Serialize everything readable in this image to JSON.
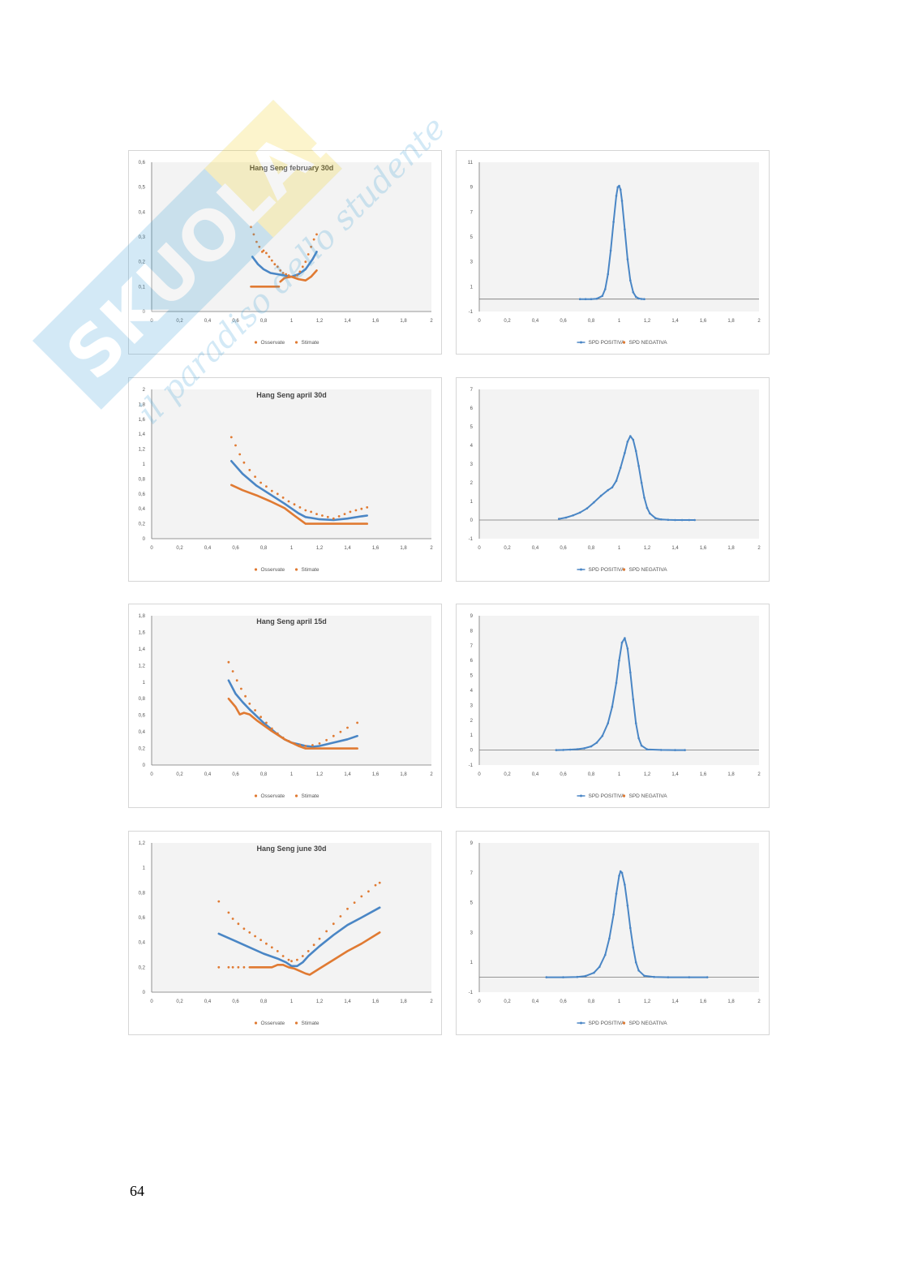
{
  "page": {
    "number": "64",
    "watermark": {
      "brand": "SKUOLA.net",
      "tagline": "il paradiso dello studente"
    }
  },
  "colors": {
    "blue": "#4a86c5",
    "orange": "#e07a32",
    "plot_bg": "#f3f3f3",
    "axis": "#777777"
  },
  "chart_data": [
    {
      "id": "iv-feb30",
      "type": "scatter",
      "title": "Hang Seng february 30d",
      "xlim": [
        0,
        2
      ],
      "ylim": [
        0,
        0.6
      ],
      "xticks": [
        "0",
        "0,2",
        "0,4",
        "0,6",
        "0,8",
        "1",
        "1,2",
        "1,4",
        "1,6",
        "1,8",
        "2"
      ],
      "yticks": [
        "0",
        "0,1",
        "0,2",
        "0,3",
        "0,4",
        "0,5",
        "0,6"
      ],
      "legend": [
        "Osservate",
        "Stimate"
      ],
      "series": [
        {
          "name": "Osservate",
          "color": "#4a86c5",
          "style": "line",
          "x": [
            0.72,
            0.76,
            0.8,
            0.85,
            0.9,
            0.95,
            1.0,
            1.05,
            1.1,
            1.15,
            1.18
          ],
          "y": [
            0.22,
            0.19,
            0.17,
            0.155,
            0.15,
            0.145,
            0.14,
            0.15,
            0.17,
            0.21,
            0.24
          ]
        },
        {
          "name": "Stimate",
          "color": "#e07a32",
          "style": "dots",
          "x": [
            0.71,
            0.73,
            0.75,
            0.77,
            0.79,
            0.8,
            0.82,
            0.84,
            0.86,
            0.88,
            0.9,
            0.92,
            0.94,
            0.96,
            0.98,
            1.0,
            1.02,
            1.04,
            1.06,
            1.08,
            1.1,
            1.12,
            1.14,
            1.16,
            1.18
          ],
          "y": [
            0.34,
            0.31,
            0.28,
            0.26,
            0.24,
            0.245,
            0.235,
            0.22,
            0.205,
            0.19,
            0.18,
            0.165,
            0.155,
            0.15,
            0.145,
            0.14,
            0.14,
            0.145,
            0.16,
            0.18,
            0.2,
            0.23,
            0.26,
            0.29,
            0.31
          ]
        },
        {
          "name": "Stimate",
          "color": "#e07a32",
          "style": "line",
          "x": [
            0.71,
            0.82,
            0.91
          ],
          "y": [
            0.1,
            0.1,
            0.1
          ]
        },
        {
          "name": "Stimate",
          "color": "#e07a32",
          "style": "line",
          "x": [
            0.92,
            0.95,
            1.0,
            1.05,
            1.1,
            1.14,
            1.18
          ],
          "y": [
            0.12,
            0.135,
            0.14,
            0.13,
            0.125,
            0.14,
            0.165
          ]
        }
      ]
    },
    {
      "id": "spd-feb30",
      "type": "line",
      "xlim": [
        0,
        2
      ],
      "ylim": [
        -1,
        11
      ],
      "xticks": [
        "0",
        "0,2",
        "0,4",
        "0,6",
        "0,8",
        "1",
        "1,2",
        "1,4",
        "1,6",
        "1,8",
        "2"
      ],
      "yticks": [
        "-1",
        "1",
        "3",
        "5",
        "7",
        "9",
        "11"
      ],
      "legend": [
        "SPD POSITIVA",
        "SPD NEGATIVA"
      ],
      "series": [
        {
          "name": "SPD POSITIVA",
          "color": "#4a86c5",
          "x": [
            0.72,
            0.76,
            0.8,
            0.84,
            0.88,
            0.9,
            0.92,
            0.94,
            0.96,
            0.98,
            0.99,
            1.0,
            1.01,
            1.02,
            1.04,
            1.06,
            1.08,
            1.1,
            1.12,
            1.14,
            1.16,
            1.18
          ],
          "y": [
            0,
            0,
            0,
            0.03,
            0.25,
            0.8,
            2.0,
            3.9,
            6.2,
            8.3,
            9.0,
            9.1,
            8.8,
            7.9,
            5.6,
            3.2,
            1.5,
            0.55,
            0.18,
            0.05,
            0.01,
            0
          ]
        }
      ]
    },
    {
      "id": "iv-apr30",
      "type": "scatter",
      "title": "Hang Seng april 30d",
      "xlim": [
        0,
        2
      ],
      "ylim": [
        0,
        2
      ],
      "xticks": [
        "0",
        "0,2",
        "0,4",
        "0,6",
        "0,8",
        "1",
        "1,2",
        "1,4",
        "1,6",
        "1,8",
        "2"
      ],
      "yticks": [
        "0",
        "0,2",
        "0,4",
        "0,6",
        "0,8",
        "1",
        "1,2",
        "1,4",
        "1,6",
        "1,8",
        "2"
      ],
      "legend": [
        "Osservate",
        "Stimate"
      ],
      "series": [
        {
          "name": "Osservate",
          "color": "#4a86c5",
          "style": "line",
          "x": [
            0.57,
            0.65,
            0.75,
            0.85,
            0.95,
            1.05,
            1.1,
            1.2,
            1.3,
            1.4,
            1.5,
            1.54
          ],
          "y": [
            1.04,
            0.87,
            0.71,
            0.59,
            0.47,
            0.34,
            0.29,
            0.26,
            0.25,
            0.27,
            0.3,
            0.31
          ]
        },
        {
          "name": "Stimate",
          "color": "#e07a32",
          "style": "dots",
          "x": [
            0.57,
            0.6,
            0.63,
            0.66,
            0.7,
            0.74,
            0.78,
            0.82,
            0.86,
            0.9,
            0.94,
            0.98,
            1.02,
            1.06,
            1.1,
            1.14,
            1.18,
            1.22,
            1.26,
            1.3,
            1.34,
            1.38,
            1.42,
            1.46,
            1.5,
            1.54
          ],
          "y": [
            1.36,
            1.25,
            1.13,
            1.02,
            0.92,
            0.83,
            0.75,
            0.7,
            0.64,
            0.6,
            0.55,
            0.5,
            0.46,
            0.42,
            0.38,
            0.36,
            0.33,
            0.31,
            0.29,
            0.27,
            0.3,
            0.33,
            0.36,
            0.38,
            0.4,
            0.42
          ]
        },
        {
          "name": "Stimate",
          "color": "#e07a32",
          "style": "line",
          "x": [
            0.57,
            0.65,
            0.75,
            0.85,
            0.95,
            1.02,
            1.1,
            1.54
          ],
          "y": [
            0.72,
            0.65,
            0.58,
            0.5,
            0.41,
            0.31,
            0.2,
            0.2
          ]
        }
      ]
    },
    {
      "id": "spd-apr30",
      "type": "line",
      "xlim": [
        0,
        2
      ],
      "ylim": [
        -1,
        7
      ],
      "xticks": [
        "0",
        "0,2",
        "0,4",
        "0,6",
        "0,8",
        "1",
        "1,2",
        "1,4",
        "1,6",
        "1,8",
        "2"
      ],
      "yticks": [
        "-1",
        "0",
        "1",
        "2",
        "3",
        "4",
        "5",
        "6",
        "7"
      ],
      "legend": [
        "SPD POSITIVA",
        "SPD NEGATIVA"
      ],
      "series": [
        {
          "name": "SPD POSITIVA",
          "color": "#4a86c5",
          "x": [
            0.57,
            0.62,
            0.67,
            0.72,
            0.77,
            0.82,
            0.87,
            0.92,
            0.95,
            0.98,
            1.01,
            1.04,
            1.06,
            1.08,
            1.1,
            1.12,
            1.14,
            1.16,
            1.18,
            1.2,
            1.22,
            1.26,
            1.3,
            1.35,
            1.4,
            1.45,
            1.5,
            1.54
          ],
          "y": [
            0.06,
            0.13,
            0.25,
            0.4,
            0.62,
            0.95,
            1.3,
            1.6,
            1.75,
            2.1,
            2.8,
            3.6,
            4.2,
            4.5,
            4.3,
            3.7,
            2.9,
            2.0,
            1.2,
            0.65,
            0.35,
            0.1,
            0.03,
            0.01,
            0,
            0,
            0,
            0
          ]
        }
      ]
    },
    {
      "id": "iv-apr15",
      "type": "scatter",
      "title": "Hang Seng april 15d",
      "xlim": [
        0,
        2
      ],
      "ylim": [
        0,
        1.8
      ],
      "xticks": [
        "0",
        "0,2",
        "0,4",
        "0,6",
        "0,8",
        "1",
        "1,2",
        "1,4",
        "1,6",
        "1,8",
        "2"
      ],
      "yticks": [
        "0",
        "0,2",
        "0,4",
        "0,6",
        "0,8",
        "1",
        "1,2",
        "1,4",
        "1,6",
        "1,8"
      ],
      "legend": [
        "Osservate",
        "Stimate"
      ],
      "series": [
        {
          "name": "Osservate",
          "color": "#4a86c5",
          "style": "line",
          "x": [
            0.55,
            0.6,
            0.65,
            0.7,
            0.75,
            0.8,
            0.85,
            0.9,
            0.95,
            1.0,
            1.05,
            1.1,
            1.15,
            1.2,
            1.3,
            1.4,
            1.47
          ],
          "y": [
            1.02,
            0.86,
            0.76,
            0.67,
            0.59,
            0.51,
            0.44,
            0.37,
            0.31,
            0.27,
            0.25,
            0.23,
            0.22,
            0.23,
            0.27,
            0.31,
            0.35
          ]
        },
        {
          "name": "Stimate",
          "color": "#e07a32",
          "style": "dots",
          "x": [
            0.55,
            0.58,
            0.61,
            0.64,
            0.67,
            0.7,
            0.74,
            0.78,
            0.82,
            0.86,
            0.9,
            0.94,
            0.98,
            1.02,
            1.06,
            1.1,
            1.15,
            1.2,
            1.25,
            1.3,
            1.35,
            1.4,
            1.47
          ],
          "y": [
            1.24,
            1.13,
            1.02,
            0.92,
            0.83,
            0.74,
            0.66,
            0.58,
            0.51,
            0.44,
            0.38,
            0.33,
            0.29,
            0.26,
            0.24,
            0.23,
            0.24,
            0.26,
            0.3,
            0.35,
            0.4,
            0.45,
            0.51
          ]
        },
        {
          "name": "Stimate",
          "color": "#e07a32",
          "style": "line",
          "x": [
            0.55,
            0.6,
            0.63,
            0.66,
            0.7,
            0.75,
            0.85,
            0.95,
            1.05,
            1.1,
            1.47
          ],
          "y": [
            0.8,
            0.7,
            0.61,
            0.63,
            0.61,
            0.54,
            0.42,
            0.31,
            0.23,
            0.2,
            0.2
          ]
        }
      ]
    },
    {
      "id": "spd-apr15",
      "type": "line",
      "xlim": [
        0,
        2
      ],
      "ylim": [
        -1,
        9
      ],
      "xticks": [
        "0",
        "0,2",
        "0,4",
        "0,6",
        "0,8",
        "1",
        "1,2",
        "1,4",
        "1,6",
        "1,8",
        "2"
      ],
      "yticks": [
        "-1",
        "0",
        "1",
        "2",
        "3",
        "4",
        "5",
        "6",
        "7",
        "8",
        "9"
      ],
      "legend": [
        "SPD POSITIVA",
        "SPD NEGATIVA"
      ],
      "series": [
        {
          "name": "SPD POSITIVA",
          "color": "#4a86c5",
          "x": [
            0.55,
            0.6,
            0.65,
            0.7,
            0.75,
            0.8,
            0.84,
            0.88,
            0.92,
            0.95,
            0.98,
            1.0,
            1.02,
            1.04,
            1.06,
            1.08,
            1.1,
            1.12,
            1.14,
            1.16,
            1.2,
            1.3,
            1.4,
            1.47
          ],
          "y": [
            0,
            0.01,
            0.03,
            0.06,
            0.12,
            0.25,
            0.5,
            0.95,
            1.8,
            2.9,
            4.5,
            6.0,
            7.2,
            7.5,
            6.8,
            5.2,
            3.4,
            1.8,
            0.8,
            0.3,
            0.05,
            0.01,
            0,
            0
          ]
        }
      ]
    },
    {
      "id": "iv-jun30",
      "type": "scatter",
      "title": "Hang Seng june 30d",
      "xlim": [
        0,
        2
      ],
      "ylim": [
        0,
        1.2
      ],
      "xticks": [
        "0",
        "0,2",
        "0,4",
        "0,6",
        "0,8",
        "1",
        "1,2",
        "1,4",
        "1,6",
        "1,8",
        "2"
      ],
      "yticks": [
        "0",
        "0,2",
        "0,4",
        "0,6",
        "0,8",
        "1",
        "1,2"
      ],
      "legend": [
        "Osservate",
        "Stimate"
      ],
      "series": [
        {
          "name": "Osservate",
          "color": "#4a86c5",
          "style": "line",
          "x": [
            0.48,
            0.6,
            0.7,
            0.8,
            0.9,
            0.96,
            1.0,
            1.04,
            1.08,
            1.12,
            1.2,
            1.3,
            1.4,
            1.5,
            1.63
          ],
          "y": [
            0.47,
            0.41,
            0.36,
            0.31,
            0.27,
            0.24,
            0.21,
            0.21,
            0.24,
            0.29,
            0.37,
            0.46,
            0.54,
            0.6,
            0.68
          ]
        },
        {
          "name": "Stimate",
          "color": "#e07a32",
          "style": "dots",
          "x": [
            0.48,
            0.55,
            0.58,
            0.62,
            0.66,
            0.7,
            0.74,
            0.78,
            0.82,
            0.86,
            0.9,
            0.94,
            0.98,
            1.0,
            1.04,
            1.08,
            1.12,
            1.16,
            1.2,
            1.25,
            1.3,
            1.35,
            1.4,
            1.45,
            1.5,
            1.55,
            1.6,
            1.63
          ],
          "y": [
            0.73,
            0.64,
            0.59,
            0.55,
            0.51,
            0.48,
            0.45,
            0.42,
            0.39,
            0.36,
            0.33,
            0.29,
            0.26,
            0.25,
            0.26,
            0.29,
            0.33,
            0.38,
            0.43,
            0.49,
            0.55,
            0.61,
            0.67,
            0.72,
            0.77,
            0.81,
            0.86,
            0.88
          ]
        },
        {
          "name": "Stimate",
          "color": "#e07a32",
          "style": "dots",
          "x": [
            0.48,
            0.55,
            0.58,
            0.62,
            0.66
          ],
          "y": [
            0.2,
            0.2,
            0.2,
            0.2,
            0.2
          ]
        },
        {
          "name": "Stimate",
          "color": "#e07a32",
          "style": "line",
          "x": [
            0.7,
            0.86,
            0.9,
            0.94,
            0.98,
            1.02,
            1.06,
            1.1,
            1.13,
            1.2,
            1.3,
            1.4,
            1.5,
            1.63
          ],
          "y": [
            0.2,
            0.2,
            0.22,
            0.22,
            0.2,
            0.19,
            0.17,
            0.15,
            0.14,
            0.19,
            0.26,
            0.33,
            0.39,
            0.48
          ]
        }
      ]
    },
    {
      "id": "spd-jun30",
      "type": "line",
      "xlim": [
        0,
        2
      ],
      "ylim": [
        -1,
        9
      ],
      "xticks": [
        "0",
        "0,2",
        "0,4",
        "0,6",
        "0,8",
        "1",
        "1,2",
        "1,4",
        "1,6",
        "1,8",
        "2"
      ],
      "yticks": [
        "-1",
        "1",
        "3",
        "5",
        "7",
        "9"
      ],
      "legend": [
        "SPD POSITIVA",
        "SPD NEGATIVA"
      ],
      "series": [
        {
          "name": "SPD POSITIVA",
          "color": "#4a86c5",
          "x": [
            0.48,
            0.6,
            0.7,
            0.76,
            0.82,
            0.86,
            0.9,
            0.93,
            0.96,
            0.98,
            1.0,
            1.01,
            1.02,
            1.04,
            1.06,
            1.08,
            1.1,
            1.12,
            1.14,
            1.18,
            1.25,
            1.35,
            1.5,
            1.63
          ],
          "y": [
            0,
            0,
            0.02,
            0.08,
            0.3,
            0.7,
            1.5,
            2.6,
            4.2,
            5.6,
            6.8,
            7.1,
            7.0,
            6.2,
            4.8,
            3.3,
            2.0,
            1.0,
            0.45,
            0.1,
            0.02,
            0,
            0,
            0
          ]
        }
      ]
    }
  ]
}
